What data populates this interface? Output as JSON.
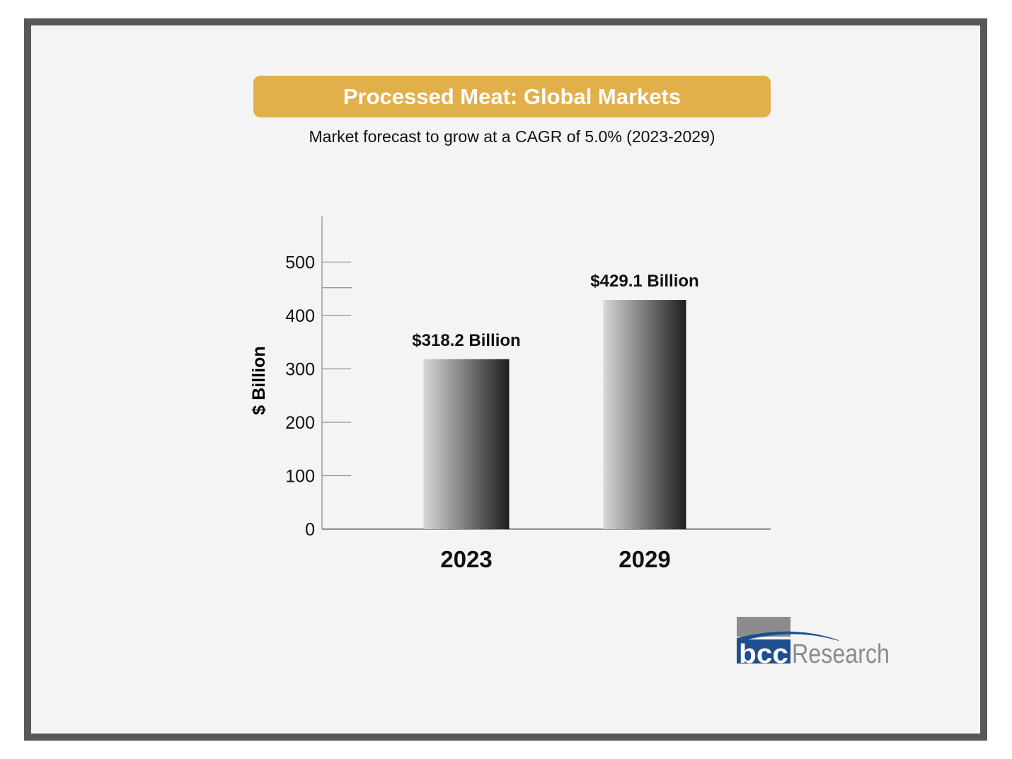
{
  "title": "Processed Meat: Global Markets",
  "subtitle": "Market forecast to grow at a CAGR of 5.0% (2023-2029)",
  "colors": {
    "title_bg": "#e2b04a",
    "frame": "#58585a",
    "logo_blue": "#1f4e8f",
    "logo_gray": "#8c8c8e"
  },
  "logo": {
    "mark": "bcc",
    "text": "Research"
  },
  "chart_data": {
    "type": "bar",
    "title": "",
    "xlabel": "",
    "ylabel": "$ Billion",
    "categories": [
      "2023",
      "2029"
    ],
    "values": [
      318.2,
      429.1
    ],
    "data_labels": [
      "$318.2 Billion",
      "$429.1 Billion"
    ],
    "ylim": [
      0,
      586
    ],
    "yticks": [
      0,
      100,
      200,
      300,
      400,
      500
    ],
    "ytick_labels": [
      "0",
      "100",
      "200",
      "300",
      "400",
      "500"
    ],
    "extra_ticks": [
      452
    ],
    "grid": false,
    "bar_fill": "gradient light-gray to black"
  }
}
